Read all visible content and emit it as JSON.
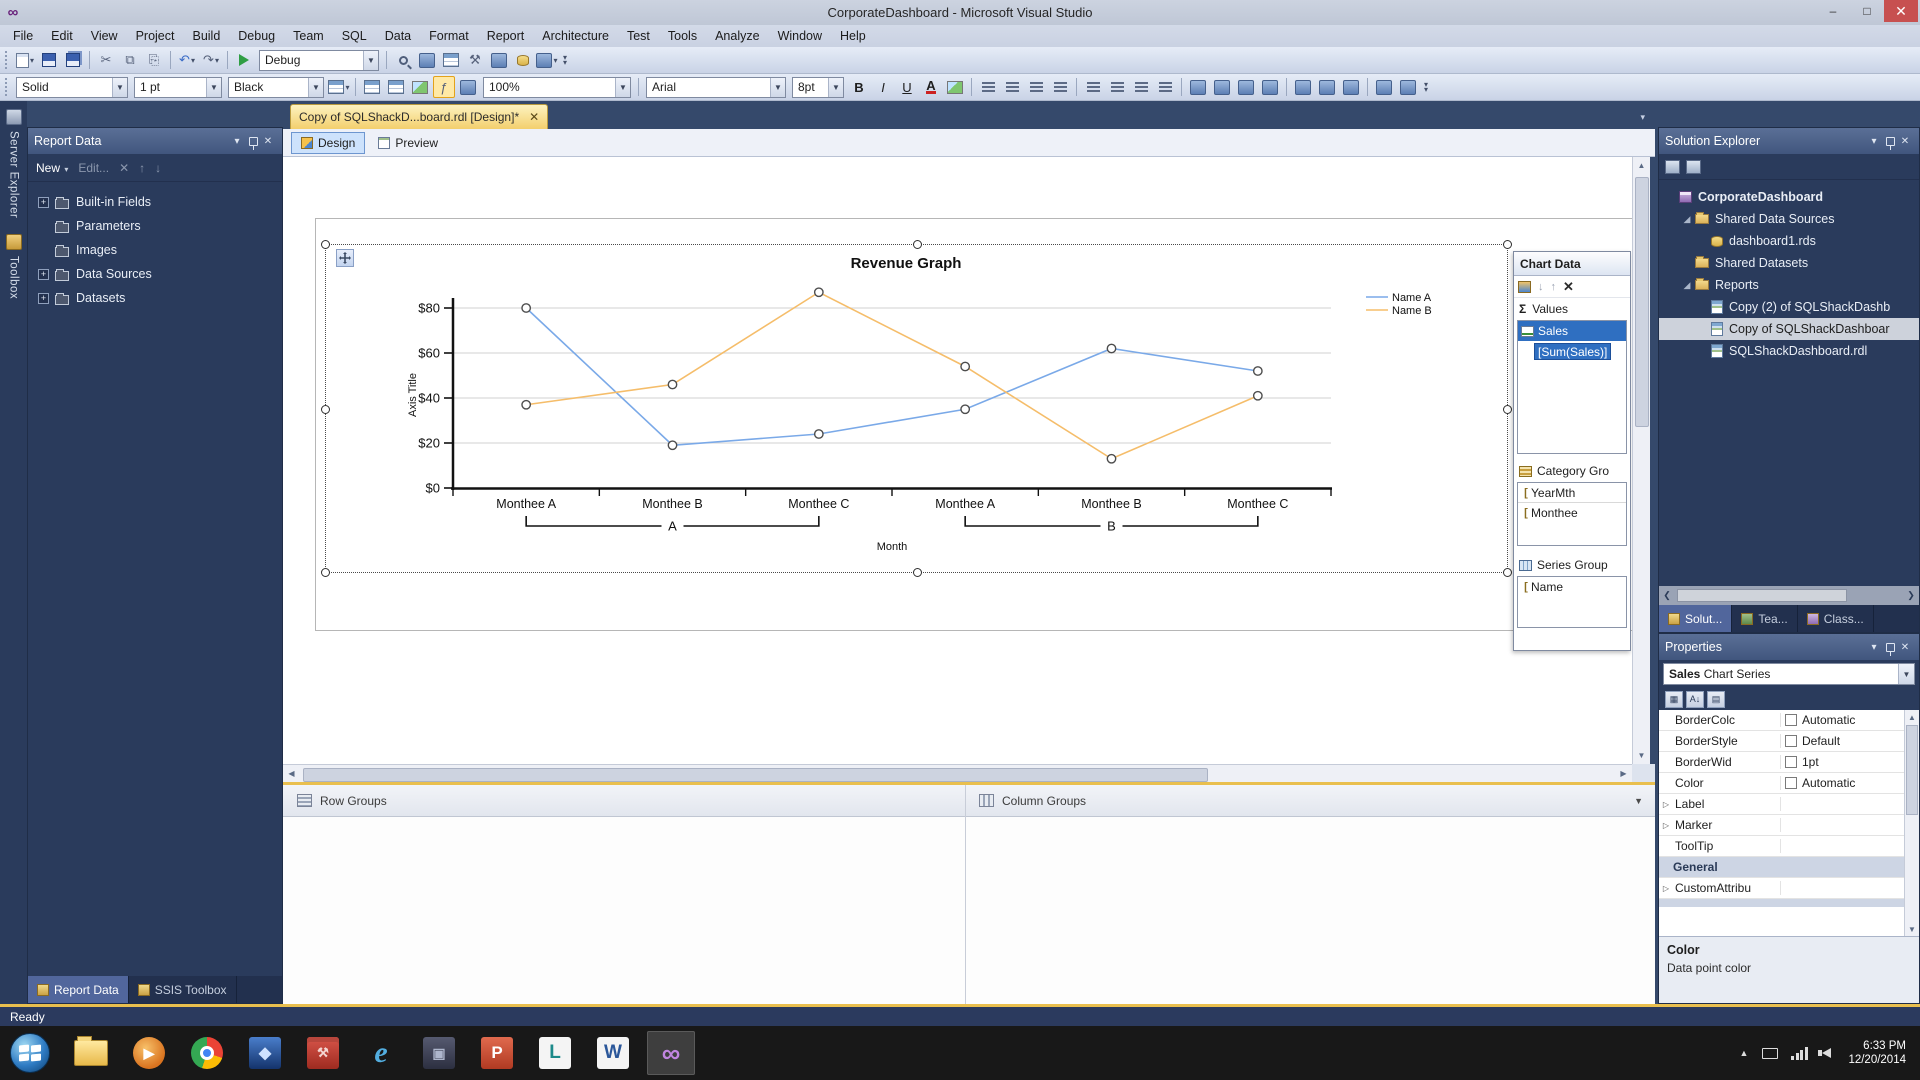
{
  "window": {
    "title": "CorporateDashboard - Microsoft Visual Studio"
  },
  "menu": [
    "File",
    "Edit",
    "View",
    "Project",
    "Build",
    "Debug",
    "Team",
    "SQL",
    "Data",
    "Format",
    "Report",
    "Architecture",
    "Test",
    "Tools",
    "Analyze",
    "Window",
    "Help"
  ],
  "toolbar": {
    "debug_target": "Debug",
    "border_style": "Solid",
    "border_width": "1 pt",
    "border_color": "Black",
    "zoom": "100%",
    "font_family": "Arial",
    "font_size": "8pt",
    "row1": [
      "new-item*",
      "save",
      "save-all",
      "|",
      "cut",
      "copy",
      "paste",
      "|",
      "undo*",
      "redo*",
      "|",
      "start-debug",
      "combo:debug_target:120",
      "|",
      "find-in-files",
      "properties-window",
      "report-designer",
      "tools",
      "import-data",
      "data-source",
      "command-window*",
      "overflow"
    ],
    "row2": [
      "combo:border_style:112",
      "combo:border_width:88",
      "combo:border_color:96",
      "border-grid*",
      "|",
      "table",
      "matrix",
      "image",
      "expression",
      "ruler",
      "combo:zoom:148",
      "|",
      "combo:font_family:140",
      "combo:font_size:52",
      "bold",
      "italic",
      "underline",
      "font-color",
      "highlight",
      "|",
      "align-left",
      "align-center",
      "align-right",
      "align-justify",
      "|",
      "bullets",
      "numbering",
      "outdent",
      "indent",
      "|",
      "align-lefts",
      "align-centers",
      "align-rights",
      "align-tops",
      "|",
      "same-width",
      "same-height",
      "same-size",
      "|",
      "bring-to-front",
      "send-to-back",
      "overflow"
    ]
  },
  "left_dock": {
    "tabs": [
      "Server Explorer",
      "Toolbox"
    ]
  },
  "report_data": {
    "title": "Report Data",
    "new_label": "New",
    "edit_label": "Edit...",
    "items": [
      {
        "label": "Built-in Fields",
        "expandable": true
      },
      {
        "label": "Parameters",
        "expandable": false
      },
      {
        "label": "Images",
        "expandable": false
      },
      {
        "label": "Data Sources",
        "expandable": true
      },
      {
        "label": "Datasets",
        "expandable": true
      }
    ],
    "bottom_tabs": [
      {
        "label": "Report Data",
        "active": true
      },
      {
        "label": "SSIS Toolbox",
        "active": false
      }
    ]
  },
  "document": {
    "tab_title": "Copy of SQLShackD...board.rdl [Design]*",
    "design_tab": "Design",
    "preview_tab": "Preview"
  },
  "chart_data": {
    "type": "line",
    "title": "Revenue Graph",
    "ylabel": "Axis Title",
    "xlabel": "Month",
    "y_ticks": [
      "$0",
      "$20",
      "$40",
      "$60",
      "$80"
    ],
    "ylim": [
      0,
      80
    ],
    "grid": true,
    "legend_position": "right",
    "categories": [
      "Monthee A",
      "Monthee B",
      "Monthee C",
      "Monthee A",
      "Monthee B",
      "Monthee C"
    ],
    "category_groups": [
      {
        "label": "A",
        "span": [
          0,
          2
        ]
      },
      {
        "label": "B",
        "span": [
          3,
          5
        ]
      }
    ],
    "series": [
      {
        "name": "Name A",
        "color": "#7aa9e8",
        "values": [
          80,
          19,
          24,
          35,
          62,
          52
        ]
      },
      {
        "name": "Name B",
        "color": "#f5bd6a",
        "values": [
          37,
          46,
          87,
          54,
          13,
          41
        ]
      }
    ]
  },
  "chart_panel": {
    "title": "Chart Data",
    "values_section": {
      "label": "Values",
      "items": [
        "Sales",
        "[Sum(Sales)]"
      ]
    },
    "category_section": {
      "label": "Category Gro",
      "items": [
        "YearMth",
        "Monthee"
      ]
    },
    "series_section": {
      "label": "Series Group",
      "items": [
        "Name"
      ]
    }
  },
  "grouping": {
    "row_label": "Row Groups",
    "column_label": "Column Groups"
  },
  "solution_explorer": {
    "title": "Solution Explorer",
    "items": [
      {
        "label": "CorporateDashboard",
        "level": 0,
        "icon": "project",
        "bold": true
      },
      {
        "label": "Shared Data Sources",
        "level": 1,
        "icon": "folder",
        "expanded": true
      },
      {
        "label": "dashboard1.rds",
        "level": 2,
        "icon": "datasource"
      },
      {
        "label": "Shared Datasets",
        "level": 1,
        "icon": "folder"
      },
      {
        "label": "Reports",
        "level": 1,
        "icon": "folder",
        "expanded": true
      },
      {
        "label": "Copy (2) of SQLShackDashb",
        "level": 2,
        "icon": "report"
      },
      {
        "label": "Copy of SQLShackDashboar",
        "level": 2,
        "icon": "report",
        "selected": true
      },
      {
        "label": "SQLShackDashboard.rdl",
        "level": 2,
        "icon": "report"
      }
    ],
    "tabs": [
      {
        "label": "Solut...",
        "active": true
      },
      {
        "label": "Tea...",
        "active": false
      },
      {
        "label": "Class...",
        "active": false
      }
    ]
  },
  "properties_panel": {
    "title": "Properties",
    "object_bold": "Sales",
    "object_rest": " Chart Series",
    "rows": [
      {
        "name": "BorderColc",
        "value": "Automatic",
        "swatch": true
      },
      {
        "name": "BorderStyle",
        "value": "Default",
        "swatch": true
      },
      {
        "name": "BorderWid",
        "value": "1pt",
        "swatch": true
      },
      {
        "name": "Color",
        "value": "Automatic",
        "swatch": true
      },
      {
        "name": "Label",
        "value": "",
        "expander": true
      },
      {
        "name": "Marker",
        "value": "",
        "expander": true
      },
      {
        "name": "ToolTip",
        "value": ""
      },
      {
        "name": "General",
        "category": true
      },
      {
        "name": "CustomAttribu",
        "value": "",
        "expander": true
      }
    ],
    "help_title": "Color",
    "help_text": "Data point color"
  },
  "status": {
    "text": "Ready"
  },
  "taskbar": {
    "icons": [
      "file-explorer",
      "media-player",
      "chrome",
      "blue-app",
      "red-toolbox-app",
      "internet-explorer",
      "dark-app",
      "red-office-app",
      "linqpad-app",
      "word-app",
      "visual-studio-active"
    ],
    "time": "6:33 PM",
    "date": "12/20/2014"
  }
}
